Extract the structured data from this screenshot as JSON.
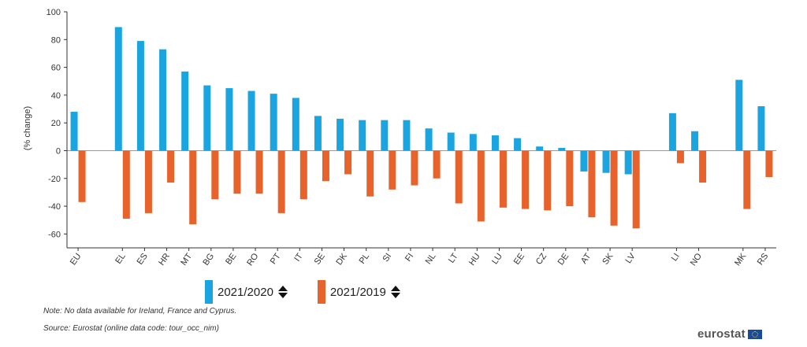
{
  "chart_data": {
    "type": "bar",
    "title": "",
    "xlabel": "",
    "ylabel": "(% change)",
    "ylim": [
      -70,
      100
    ],
    "yticks": [
      100,
      80,
      60,
      40,
      20,
      0,
      -20,
      -40,
      -60
    ],
    "categories": [
      "EU",
      "",
      "EL",
      "ES",
      "HR",
      "MT",
      "BG",
      "BE",
      "RO",
      "PT",
      "IT",
      "SE",
      "DK",
      "PL",
      "SI",
      "FI",
      "NL",
      "LT",
      "HU",
      "LU",
      "EE",
      "CZ",
      "DE",
      "AT",
      "SK",
      "LV",
      "",
      "LI",
      "NO",
      "",
      "MK",
      "RS"
    ],
    "series": [
      {
        "name": "2021/2020",
        "color": "#1aa5e0",
        "values": [
          28,
          null,
          89,
          79,
          73,
          57,
          47,
          45,
          43,
          41,
          38,
          25,
          23,
          22,
          22,
          22,
          16,
          13,
          12,
          11,
          9,
          3,
          2,
          -15,
          -16,
          -17,
          null,
          27,
          14,
          null,
          51,
          32
        ]
      },
      {
        "name": "2021/2019",
        "color": "#e8622c",
        "values": [
          -37,
          null,
          -49,
          -45,
          -23,
          -53,
          -35,
          -31,
          -31,
          -45,
          -35,
          -22,
          -17,
          -33,
          -28,
          -25,
          -20,
          -38,
          -51,
          -41,
          -42,
          -43,
          -40,
          -48,
          -54,
          -56,
          null,
          -9,
          -23,
          null,
          -42,
          -19
        ]
      }
    ]
  },
  "legend": {
    "items": [
      {
        "label": "2021/2020",
        "color": "#1aa5e0",
        "sort_icon": "sort-updown-icon"
      },
      {
        "label": "2021/2019",
        "color": "#e8622c",
        "sort_icon": "sort-updown-icon"
      }
    ]
  },
  "footer": {
    "note": "Note: No data available for Ireland, France and Cyprus.",
    "source": "Source: Eurostat (online data code: tour_occ_nim)",
    "logo_text": "eurostat",
    "logo_icon": "eu-flag-icon"
  }
}
